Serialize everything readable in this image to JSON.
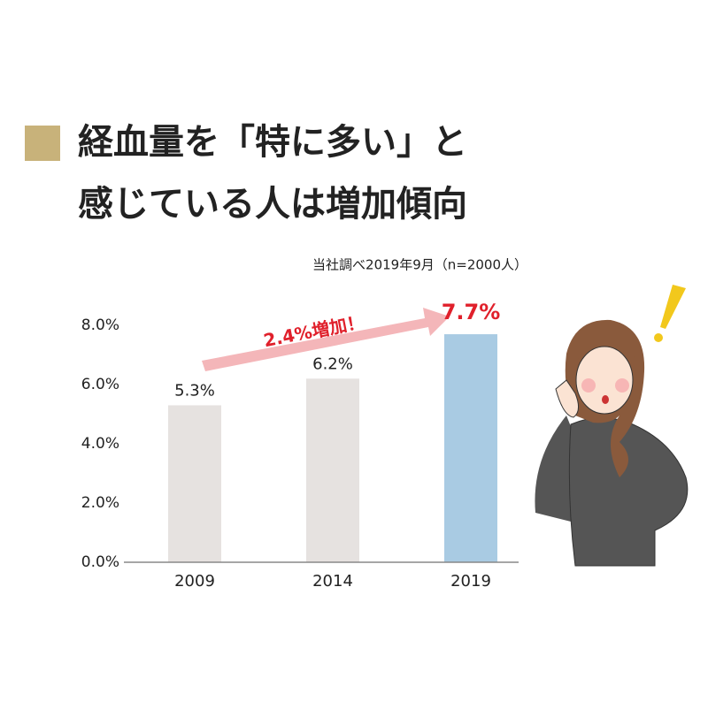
{
  "chart_data": {
    "type": "bar",
    "title": [
      "経血量を「特に多い」と",
      "感じている人は増加傾向"
    ],
    "subtitle": "当社調べ2019年9月（n=2000人）",
    "annotation": "2.4%増加！",
    "categories": [
      "2009",
      "2014",
      "2019"
    ],
    "values": [
      5.3,
      6.2,
      7.7
    ],
    "value_labels": [
      "5.3%",
      "6.2%",
      "7.7%"
    ],
    "colors": [
      "#e6e2e0",
      "#e6e2e0",
      "#a9cbe3"
    ],
    "label_colors": [
      "#222222",
      "#222222",
      "#e0202b"
    ],
    "ylim": [
      0,
      8
    ],
    "yticks": [
      {
        "value": 0,
        "label": "0.0%"
      },
      {
        "value": 2,
        "label": "2.0%"
      },
      {
        "value": 4,
        "label": "4.0%"
      },
      {
        "value": 6,
        "label": "6.0%"
      },
      {
        "value": 8,
        "label": "8.0%"
      }
    ],
    "grid": false
  }
}
